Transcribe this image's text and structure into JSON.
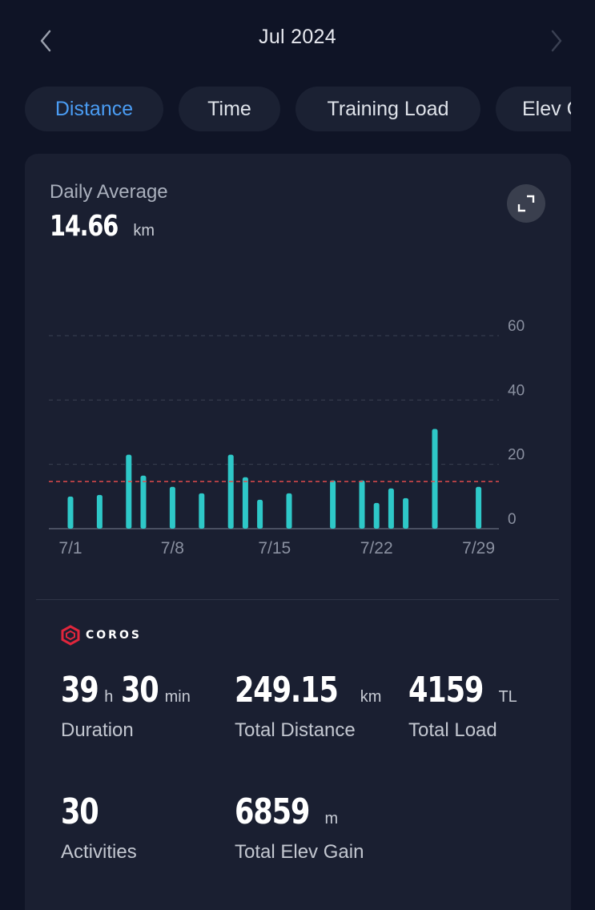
{
  "header": {
    "month": "Jul 2024"
  },
  "tabs": [
    {
      "label": "Distance",
      "active": true
    },
    {
      "label": "Time",
      "active": false
    },
    {
      "label": "Training Load",
      "active": false
    },
    {
      "label": "Elev G",
      "active": false
    }
  ],
  "summary": {
    "label": "Daily Average",
    "value": "14.66",
    "unit": "km"
  },
  "chart_data": {
    "type": "bar",
    "x": [
      "7/1",
      "7/2",
      "7/3",
      "7/4",
      "7/5",
      "7/6",
      "7/7",
      "7/8",
      "7/9",
      "7/10",
      "7/11",
      "7/12",
      "7/13",
      "7/14",
      "7/15",
      "7/16",
      "7/17",
      "7/18",
      "7/19",
      "7/20",
      "7/21",
      "7/22",
      "7/23",
      "7/24",
      "7/25",
      "7/26",
      "7/27",
      "7/28",
      "7/29",
      "7/30",
      "7/31"
    ],
    "values": [
      10,
      0,
      10.5,
      0,
      23,
      16.5,
      0,
      13,
      0,
      11,
      0,
      23,
      16,
      9,
      0,
      11,
      0,
      0,
      15,
      0,
      15,
      8,
      12.5,
      9.5,
      0,
      31,
      0,
      0,
      13,
      0,
      0
    ],
    "x_tick_labels": [
      "7/1",
      "7/8",
      "7/15",
      "7/22",
      "7/29"
    ],
    "y_ticks": [
      0,
      20,
      40,
      60
    ],
    "ylim": [
      0,
      60
    ],
    "average_line": 14.66,
    "bar_color": "#2ec8c8",
    "average_line_color": "#e04b4b",
    "grid": true,
    "y_axis_position": "right"
  },
  "brand": {
    "name": "COROS",
    "logo_color": "#e0263c"
  },
  "stats": {
    "duration": {
      "hours": "39",
      "hours_unit": "h",
      "minutes": "30",
      "minutes_unit": "min",
      "label": "Duration"
    },
    "distance": {
      "value": "249.15",
      "unit": "km",
      "label": "Total Distance"
    },
    "load": {
      "value": "4159",
      "unit": "TL",
      "label": "Total Load"
    },
    "activities": {
      "value": "30",
      "label": "Activities"
    },
    "elev": {
      "value": "6859",
      "unit": "m",
      "label": "Total Elev Gain"
    }
  },
  "colors": {
    "background": "#0f1426",
    "card": "#1a1f31",
    "accent": "#4a9cf3"
  }
}
